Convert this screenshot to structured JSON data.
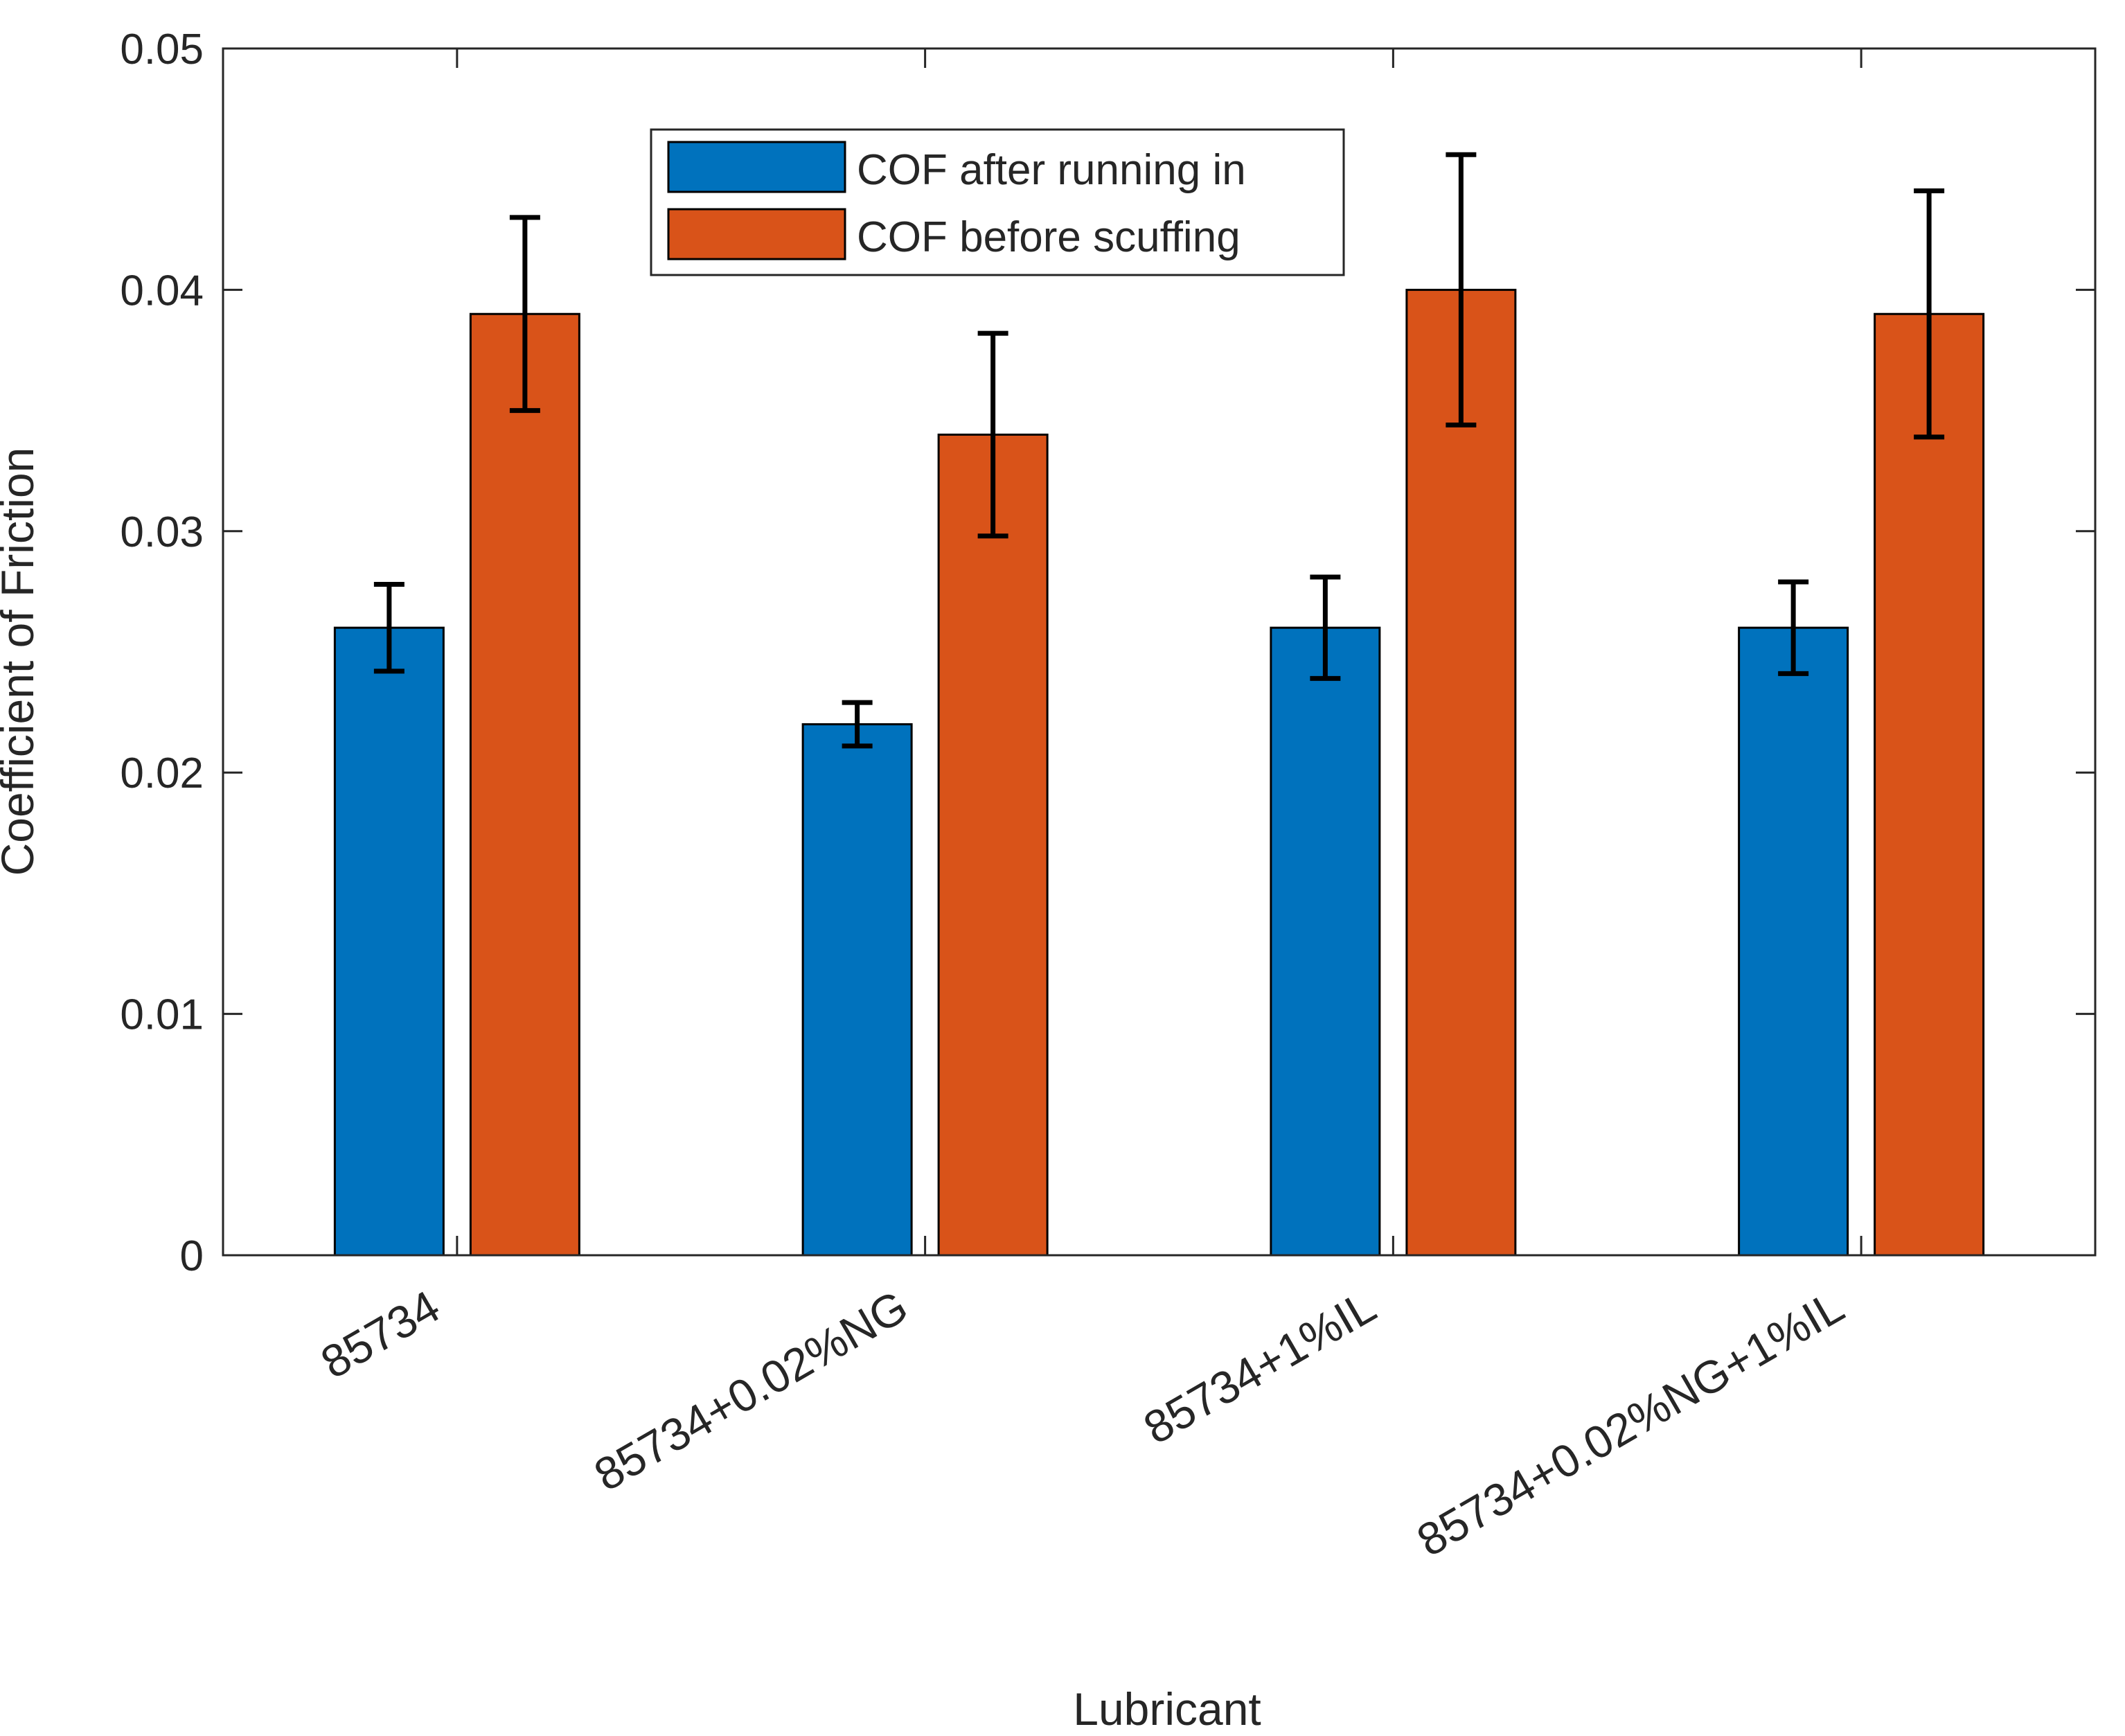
{
  "chart_data": {
    "type": "bar",
    "title": "",
    "xlabel": "Lubricant",
    "ylabel": "Coefficient of Friction",
    "ylim": [
      0,
      0.05
    ],
    "yticks": [
      "0",
      "0.01",
      "0.02",
      "0.03",
      "0.04",
      "0.05"
    ],
    "yticks_values": [
      0,
      0.01,
      0.02,
      0.03,
      0.04,
      0.05
    ],
    "categories": [
      "85734",
      "85734+0.02%NG",
      "85734+1%IL",
      "85734+0.02%NG+1%IL"
    ],
    "series": [
      {
        "name": "COF after running in",
        "color": "#0072BD",
        "values": [
          0.026,
          0.022,
          0.026,
          0.026
        ],
        "err_low": [
          0.0242,
          0.0211,
          0.0239,
          0.0241
        ],
        "err_high": [
          0.0278,
          0.0229,
          0.0281,
          0.0279
        ]
      },
      {
        "name": "COF before scuffing",
        "color": "#D95319",
        "values": [
          0.039,
          0.034,
          0.04,
          0.039
        ],
        "err_low": [
          0.035,
          0.0298,
          0.0344,
          0.0339
        ],
        "err_high": [
          0.043,
          0.0382,
          0.0456,
          0.0441
        ]
      }
    ],
    "legend": {
      "position": "top-center"
    },
    "grid": false
  }
}
